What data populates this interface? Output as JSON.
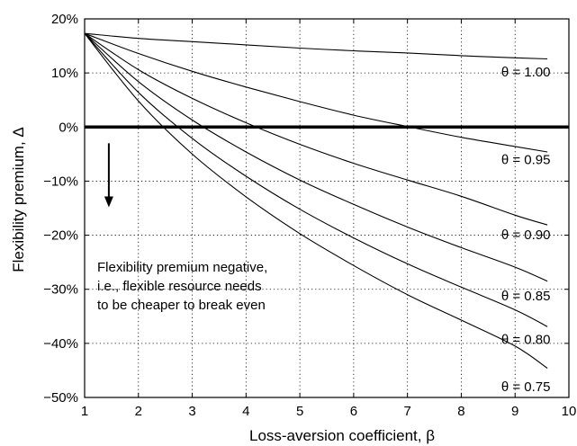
{
  "chart_data": {
    "type": "line",
    "xlabel": "Loss-aversion coefficient, β",
    "ylabel": "Flexibility premium, Δ",
    "xlim": [
      1,
      10
    ],
    "ylim": [
      -50,
      20
    ],
    "x_ticks": [
      "1",
      "2",
      "3",
      "4",
      "5",
      "6",
      "7",
      "8",
      "9",
      "10"
    ],
    "y_ticks": [
      "20%",
      "10%",
      "0%",
      "−10%",
      "−20%",
      "−30%",
      "−40%",
      "−50%"
    ],
    "y_tick_values": [
      20,
      10,
      0,
      -10,
      -20,
      -30,
      -40,
      -50
    ],
    "grid": true,
    "series": [
      {
        "name": "θ = 1.00",
        "x": [
          1,
          2,
          3,
          4,
          5,
          6,
          7,
          8,
          9,
          9.6
        ],
        "y": [
          17.3,
          16.4,
          15.8,
          15.2,
          14.6,
          14.1,
          13.7,
          13.2,
          12.8,
          12.6
        ]
      },
      {
        "name": "θ = 0.95",
        "x": [
          1,
          2,
          3,
          4,
          5,
          6,
          7,
          8,
          9,
          9.6
        ],
        "y": [
          17.3,
          13.6,
          10.3,
          7.4,
          4.7,
          2.2,
          0.1,
          -1.9,
          -3.6,
          -4.6
        ]
      },
      {
        "name": "θ = 0.90",
        "x": [
          1,
          2,
          3,
          4,
          5,
          6,
          7,
          8,
          9,
          9.6
        ],
        "y": [
          17.3,
          10.6,
          5.3,
          0.8,
          -3.2,
          -6.7,
          -9.8,
          -12.8,
          -16.3,
          -18.1
        ]
      },
      {
        "name": "θ = 0.85",
        "x": [
          1,
          2,
          3,
          4,
          5,
          6,
          7,
          8,
          9,
          9.6
        ],
        "y": [
          17.3,
          8.4,
          1.3,
          -4.6,
          -9.8,
          -14.3,
          -18.5,
          -22.3,
          -25.9,
          -28.5
        ]
      },
      {
        "name": "θ = 0.80",
        "x": [
          1,
          2,
          3,
          4,
          5,
          6,
          7,
          8,
          9,
          9.6
        ],
        "y": [
          17.3,
          6.4,
          -2.1,
          -9.1,
          -15.2,
          -20.5,
          -25.3,
          -29.6,
          -33.8,
          -36.9
        ]
      },
      {
        "name": "θ = 0.75",
        "x": [
          1,
          2,
          3,
          4,
          5,
          6,
          7,
          8,
          9,
          9.6
        ],
        "y": [
          17.3,
          4.8,
          -5.0,
          -12.9,
          -19.7,
          -25.6,
          -31.0,
          -35.7,
          -40.5,
          -44.6
        ]
      }
    ],
    "series_label_anchor": [
      {
        "x": 9.2,
        "y": 10.2
      },
      {
        "x": 9.2,
        "y": -6.0
      },
      {
        "x": 9.2,
        "y": -19.9
      },
      {
        "x": 9.2,
        "y": -31.2
      },
      {
        "x": 9.2,
        "y": -39.3
      },
      {
        "x": 9.2,
        "y": -48.0
      }
    ],
    "reference_line_y": 0,
    "annotation": {
      "lines": [
        "Flexibility premium negative,",
        "i.e., flexible resource needs",
        "to be cheaper to break even"
      ],
      "arrow_x": 1.45,
      "arrow_from_y": -3,
      "arrow_to_y": -14.5
    }
  }
}
